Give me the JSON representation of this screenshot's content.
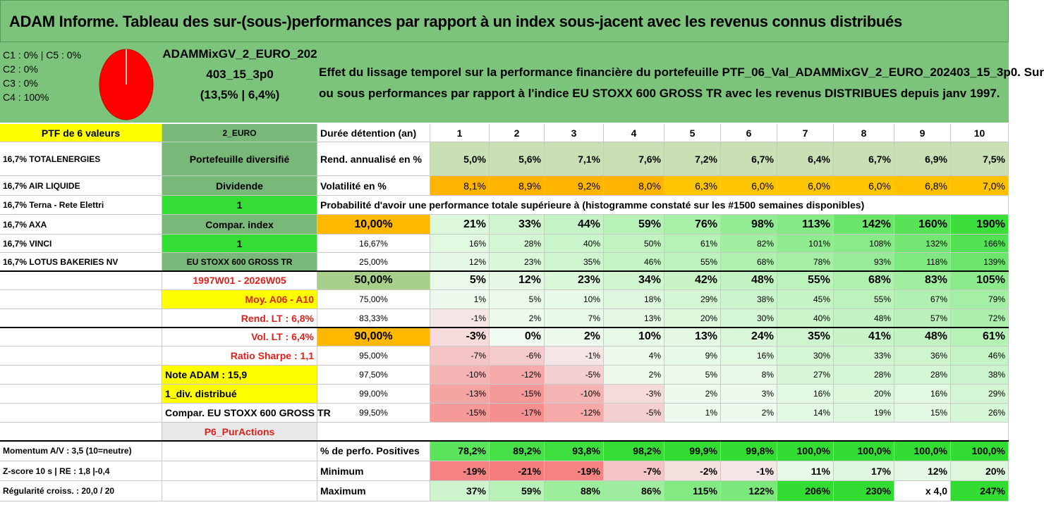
{
  "title": "ADAM Informe. Tableau des sur-(sous-)performances par rapport à un index sous-jacent avec les revenus connus distribués",
  "allocation": [
    "C1 : 0% | C5 : 0%",
    "C2 : 0%",
    "C3 : 0%",
    "C4 : 100%"
  ],
  "portfolio": {
    "name_line1": "ADAMMixGV_2_EURO_202",
    "name_line2": "403_15_3p0",
    "name_line3": "(13,5% | 6,4%)"
  },
  "description_line1": "Effet du lissage temporel sur la performance financière du portefeuille PTF_06_Val_ADAMMixGV_2_EURO_202403_15_3p0. Sur",
  "description_line2": "ou sous performances par rapport à l'indice EU STOXX 600 GROSS TR avec les revenus DISTRIBUES depuis janv 1997.",
  "col1": [
    "PTF de 6 valeurs",
    "16,7% TOTALENERGIES",
    "16,7% AIR LIQUIDE",
    "16,7% Terna - Rete Elettri",
    "16,7% AXA",
    "16,7% VINCI",
    "16,7% LOTUS BAKERIES NV"
  ],
  "col1_bottom": [
    "Momentum A/V : 3,5 (10=neutre)",
    "Z-score 10 s | RE : 1,8 |-0,4",
    "Régularité croiss. : 20,0 / 20"
  ],
  "col2": [
    "2_EURO",
    "Portefeuille diversifié",
    "Dividende",
    "1",
    "Compar. index",
    "1",
    "EU STOXX 600 GROSS TR",
    "1997W01 - 2026W05",
    "Moy. A06 - A10",
    "Rend. LT : 6,8%",
    "Vol. LT : 6,4%",
    "Ratio Sharpe : 1,1",
    "Note ADAM : 15,9",
    "1_div. distribué",
    "Compar. EU STOXX 600 GROSS TR",
    "P6_PurActions"
  ],
  "row_labels": {
    "duration": "Durée détention (an)",
    "return": "Rend. annualisé en %",
    "volatility": "Volatilité en %",
    "probability": "Probabilité d'avoir une performance totale supérieure à (histogramme constaté sur les #1500 semaines disponibles)",
    "positive": "% de perfo. Positives",
    "minimum": "Minimum",
    "maximum": "Maximum"
  },
  "years": [
    "1",
    "2",
    "3",
    "4",
    "5",
    "6",
    "7",
    "8",
    "9",
    "10"
  ],
  "returns": [
    "5,0%",
    "5,6%",
    "7,1%",
    "7,6%",
    "7,2%",
    "6,7%",
    "6,4%",
    "6,7%",
    "6,9%",
    "7,5%"
  ],
  "volatility": [
    "8,1%",
    "8,9%",
    "9,2%",
    "8,0%",
    "6,3%",
    "6,0%",
    "6,0%",
    "6,0%",
    "6,8%",
    "7,0%"
  ],
  "quantiles": [
    "10,00%",
    "16,67%",
    "25,00%",
    "50,00%",
    "75,00%",
    "83,33%",
    "90,00%",
    "95,00%",
    "97,50%",
    "99,00%",
    "99,50%"
  ],
  "prob": [
    [
      "21%",
      "33%",
      "44%",
      "59%",
      "76%",
      "98%",
      "113%",
      "142%",
      "160%",
      "190%"
    ],
    [
      "16%",
      "28%",
      "40%",
      "50%",
      "61%",
      "82%",
      "101%",
      "108%",
      "132%",
      "166%"
    ],
    [
      "12%",
      "23%",
      "35%",
      "46%",
      "55%",
      "68%",
      "78%",
      "93%",
      "118%",
      "139%"
    ],
    [
      "5%",
      "12%",
      "23%",
      "34%",
      "42%",
      "48%",
      "55%",
      "68%",
      "83%",
      "105%"
    ],
    [
      "1%",
      "5%",
      "10%",
      "18%",
      "29%",
      "38%",
      "45%",
      "55%",
      "67%",
      "79%"
    ],
    [
      "-1%",
      "2%",
      "7%",
      "13%",
      "20%",
      "30%",
      "40%",
      "48%",
      "57%",
      "72%"
    ],
    [
      "-3%",
      "0%",
      "2%",
      "10%",
      "13%",
      "24%",
      "35%",
      "41%",
      "48%",
      "61%"
    ],
    [
      "-7%",
      "-6%",
      "-1%",
      "4%",
      "9%",
      "16%",
      "30%",
      "33%",
      "36%",
      "46%"
    ],
    [
      "-10%",
      "-12%",
      "-5%",
      "2%",
      "5%",
      "8%",
      "27%",
      "28%",
      "28%",
      "38%"
    ],
    [
      "-13%",
      "-15%",
      "-10%",
      "-3%",
      "2%",
      "3%",
      "16%",
      "20%",
      "16%",
      "29%"
    ],
    [
      "-15%",
      "-17%",
      "-12%",
      "-5%",
      "1%",
      "2%",
      "14%",
      "19%",
      "15%",
      "26%"
    ]
  ],
  "positive": [
    "78,2%",
    "89,2%",
    "93,8%",
    "98,2%",
    "99,9%",
    "99,8%",
    "100,0%",
    "100,0%",
    "100,0%",
    "100,0%"
  ],
  "minimum": [
    "-19%",
    "-21%",
    "-19%",
    "-7%",
    "-2%",
    "-1%",
    "11%",
    "17%",
    "12%",
    "20%"
  ],
  "maximum": [
    "37%",
    "59%",
    "88%",
    "86%",
    "115%",
    "122%",
    "206%",
    "230%",
    "x 4,0",
    "247%"
  ]
}
